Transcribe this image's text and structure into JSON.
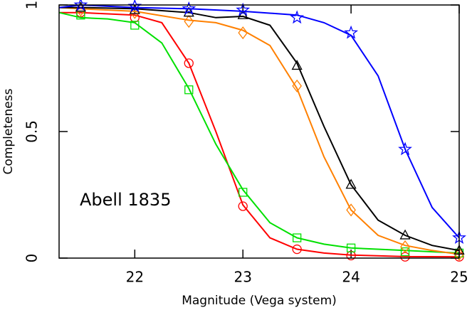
{
  "chart_data": {
    "type": "line",
    "xlabel": "Magnitude (Vega system)",
    "ylabel": "Completeness",
    "annotation": "Abell 1835",
    "xlim": [
      21.3,
      25
    ],
    "ylim": [
      0,
      1
    ],
    "xticks": [
      22,
      23,
      24,
      25
    ],
    "yticks": [
      0,
      0.5,
      1
    ],
    "series": [
      {
        "color": "#ff0000",
        "marker": "circle",
        "line": {
          "x": [
            21.3,
            21.5,
            21.75,
            22,
            22.25,
            22.5,
            22.75,
            23,
            23.25,
            23.5,
            23.75,
            24,
            24.5,
            25
          ],
          "values": [
            0.97,
            0.97,
            0.965,
            0.96,
            0.93,
            0.77,
            0.5,
            0.21,
            0.08,
            0.035,
            0.02,
            0.012,
            0.006,
            0.005
          ]
        },
        "points": {
          "x": [
            21.5,
            22,
            22.5,
            23,
            23.5,
            24,
            24.5,
            25
          ],
          "values": [
            0.97,
            0.95,
            0.77,
            0.205,
            0.035,
            0.01,
            0.005,
            0.005
          ]
        }
      },
      {
        "color": "#00e000",
        "marker": "square",
        "line": {
          "x": [
            21.3,
            21.5,
            21.75,
            22,
            22.25,
            22.5,
            22.75,
            23,
            23.25,
            23.5,
            23.75,
            24,
            24.5,
            25
          ],
          "values": [
            0.97,
            0.95,
            0.945,
            0.93,
            0.85,
            0.67,
            0.45,
            0.27,
            0.14,
            0.08,
            0.055,
            0.04,
            0.03,
            0.02
          ]
        },
        "points": {
          "x": [
            21.5,
            22,
            22.5,
            23,
            23.5,
            24,
            24.5,
            25
          ],
          "values": [
            0.96,
            0.92,
            0.665,
            0.26,
            0.08,
            0.04,
            0.025,
            0.02
          ]
        }
      },
      {
        "color": "#ff8000",
        "marker": "diamond",
        "line": {
          "x": [
            21.3,
            21.5,
            22,
            22.5,
            22.75,
            23,
            23.25,
            23.5,
            23.75,
            24,
            24.25,
            24.5,
            24.75,
            25
          ],
          "values": [
            0.99,
            0.985,
            0.975,
            0.94,
            0.93,
            0.9,
            0.84,
            0.67,
            0.4,
            0.19,
            0.09,
            0.05,
            0.03,
            0.015
          ]
        },
        "points": {
          "x": [
            21.5,
            22,
            22.5,
            23,
            23.5,
            24,
            24.5,
            25
          ],
          "values": [
            0.98,
            0.97,
            0.935,
            0.89,
            0.68,
            0.19,
            0.045,
            0.015
          ]
        }
      },
      {
        "color": "#000000",
        "marker": "triangle",
        "line": {
          "x": [
            21.3,
            21.5,
            22,
            22.5,
            22.75,
            23,
            23.25,
            23.5,
            23.75,
            24,
            24.25,
            24.5,
            24.75,
            25
          ],
          "values": [
            0.99,
            0.99,
            0.985,
            0.97,
            0.95,
            0.955,
            0.92,
            0.77,
            0.52,
            0.29,
            0.15,
            0.09,
            0.05,
            0.03
          ]
        },
        "points": {
          "x": [
            21.5,
            22,
            22.5,
            23,
            23.5,
            24,
            24.5,
            25
          ],
          "values": [
            0.99,
            0.98,
            0.97,
            0.96,
            0.76,
            0.29,
            0.09,
            0.03
          ]
        }
      },
      {
        "color": "#0000ff",
        "marker": "star",
        "line": {
          "x": [
            21.3,
            21.5,
            22,
            22.5,
            23,
            23.5,
            23.75,
            24,
            24.25,
            24.5,
            24.75,
            25
          ],
          "values": [
            0.99,
            1,
            0.99,
            0.985,
            0.975,
            0.96,
            0.93,
            0.88,
            0.72,
            0.43,
            0.2,
            0.08
          ]
        },
        "points": {
          "x": [
            21.5,
            22,
            22.5,
            23,
            23.5,
            24,
            24.5,
            25
          ],
          "values": [
            1,
            0.995,
            0.985,
            0.98,
            0.95,
            0.89,
            0.43,
            0.08
          ]
        }
      }
    ]
  }
}
